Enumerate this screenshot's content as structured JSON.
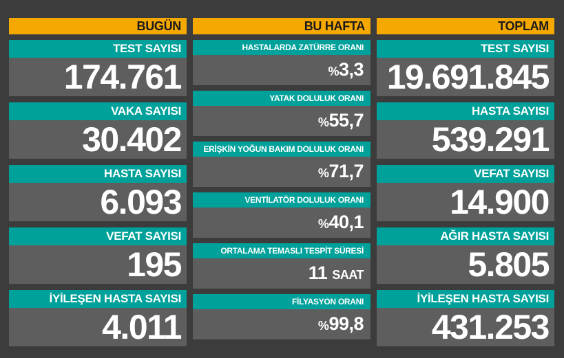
{
  "today": {
    "header": "BUGÜN",
    "cards": [
      {
        "label": "TEST SAYISI",
        "value": "174.761"
      },
      {
        "label": "VAKA SAYISI",
        "value": "30.402"
      },
      {
        "label": "HASTA SAYISI",
        "value": "6.093"
      },
      {
        "label": "VEFAT SAYISI",
        "value": "195"
      },
      {
        "label": "İYİLEŞEN HASTA SAYISI",
        "value": "4.011"
      }
    ]
  },
  "week": {
    "header": "BU HAFTA",
    "cards": [
      {
        "label": "HASTALARDA ZATÜRRE ORANI",
        "prefix": "%",
        "value": "3,3",
        "suffix": ""
      },
      {
        "label": "YATAK DOLULUK ORANI",
        "prefix": "%",
        "value": "55,7",
        "suffix": ""
      },
      {
        "label": "ERİŞKİN YOĞUN BAKIM DOLULUK ORANI",
        "prefix": "%",
        "value": "71,7",
        "suffix": ""
      },
      {
        "label": "VENTİLATÖR DOLULUK ORANI",
        "prefix": "%",
        "value": "40,1",
        "suffix": ""
      },
      {
        "label": "ORTALAMA TEMASLI TESPİT SÜRESİ",
        "prefix": "",
        "value": "11",
        "suffix": "SAAT"
      },
      {
        "label": "FİLYASYON ORANI",
        "prefix": "%",
        "value": "99,8",
        "suffix": ""
      }
    ]
  },
  "total": {
    "header": "TOPLAM",
    "cards": [
      {
        "label": "TEST SAYISI",
        "value": "19.691.845"
      },
      {
        "label": "HASTA SAYISI",
        "value": "539.291"
      },
      {
        "label": "VEFAT SAYISI",
        "value": "14.900"
      },
      {
        "label": "AĞIR HASTA SAYISI",
        "value": "5.805"
      },
      {
        "label": "İYİLEŞEN HASTA SAYISI",
        "value": "431.253"
      }
    ]
  },
  "colors": {
    "header": "#f5a800",
    "label_bar": "#00a19a",
    "card": "#5e5e5e",
    "background": "#3c3c3c"
  }
}
